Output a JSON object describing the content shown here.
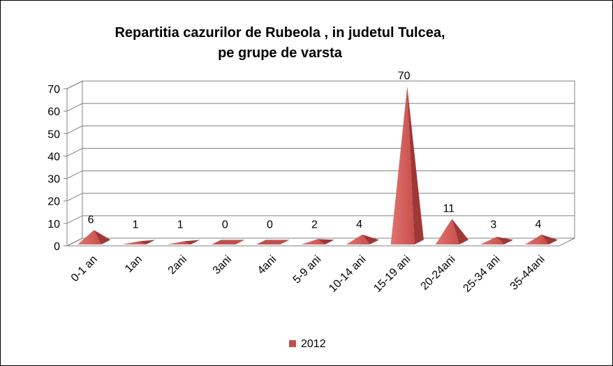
{
  "chart_data": {
    "type": "bar",
    "style": "3d-pyramid",
    "title_lines": [
      "Repartitia cazurilor  de Rubeola , in judetul Tulcea,",
      "pe grupe de varsta"
    ],
    "categories": [
      "0-1 an",
      "1an",
      "2ani",
      "3ani",
      "4ani",
      "5-9 ani",
      "10-14 ani",
      "15-19 ani",
      "20-24ani",
      "25-34 ani",
      "35-44ani"
    ],
    "series": [
      {
        "name": "2012",
        "color": "#c0504d",
        "values": [
          6,
          1,
          1,
          0,
          0,
          2,
          4,
          70,
          11,
          3,
          4
        ]
      }
    ],
    "ylim": [
      0,
      70
    ],
    "yticks": [
      0,
      10,
      20,
      30,
      40,
      50,
      60,
      70
    ],
    "grid": true,
    "legend_position": "bottom"
  }
}
